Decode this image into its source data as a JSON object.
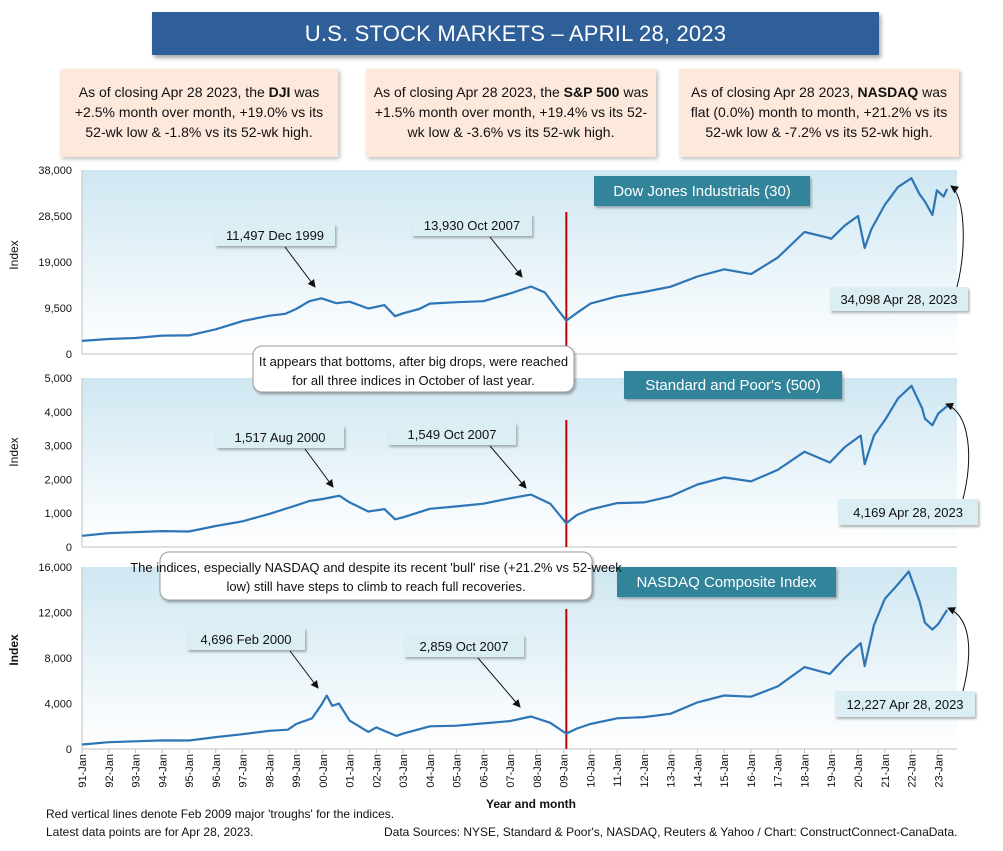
{
  "title": "U.S. STOCK MARKETS – APRIL 28, 2023",
  "summaries": [
    {
      "pre": "As of closing Apr 28 2023, the ",
      "bold": "DJI",
      "post": " was +2.5% month over month, +19.0% vs its 52-wk low & -1.8% vs its 52-wk high."
    },
    {
      "pre": "As of closing Apr 28 2023, the ",
      "bold": "S&P 500",
      "post": " was +1.5% month over month, +19.4% vs its 52-wk low & -3.6% vs its 52-wk high."
    },
    {
      "pre": "As of closing Apr 28 2023, ",
      "bold": "NASDAQ",
      "post": " was flat (0.0%) month to month, +21.2% vs its 52-wk low & -7.2% vs its 52-wk high."
    }
  ],
  "chart_data": [
    {
      "type": "line",
      "title": "Dow Jones Industrials (30)",
      "ylabel": "Index",
      "ylim": [
        0,
        38000
      ],
      "yticks": [
        "0",
        "9,500",
        "19,000",
        "28,500",
        "38,000"
      ],
      "points": [
        [
          1991.0,
          2700
        ],
        [
          1992.0,
          3100
        ],
        [
          1993.0,
          3300
        ],
        [
          1994.0,
          3800
        ],
        [
          1995.0,
          3850
        ],
        [
          1996.0,
          5100
        ],
        [
          1997.0,
          6800
        ],
        [
          1998.0,
          7900
        ],
        [
          1998.6,
          8300
        ],
        [
          1999.0,
          9300
        ],
        [
          1999.5,
          10900
        ],
        [
          1999.95,
          11497
        ],
        [
          2000.5,
          10500
        ],
        [
          2001.0,
          10800
        ],
        [
          2001.7,
          9400
        ],
        [
          2002.3,
          10100
        ],
        [
          2002.7,
          7800
        ],
        [
          2003.0,
          8400
        ],
        [
          2003.6,
          9300
        ],
        [
          2004.0,
          10400
        ],
        [
          2005.0,
          10700
        ],
        [
          2006.0,
          10900
        ],
        [
          2007.0,
          12500
        ],
        [
          2007.78,
          13930
        ],
        [
          2008.3,
          12700
        ],
        [
          2008.8,
          9000
        ],
        [
          2009.1,
          6900
        ],
        [
          2009.5,
          8500
        ],
        [
          2010.0,
          10400
        ],
        [
          2011.0,
          11900
        ],
        [
          2012.0,
          12800
        ],
        [
          2013.0,
          13900
        ],
        [
          2014.0,
          16000
        ],
        [
          2015.0,
          17500
        ],
        [
          2016.0,
          16500
        ],
        [
          2017.0,
          19900
        ],
        [
          2018.0,
          25200
        ],
        [
          2018.9,
          24000
        ],
        [
          2019.0,
          23800
        ],
        [
          2019.5,
          26500
        ],
        [
          2020.0,
          28500
        ],
        [
          2020.25,
          21900
        ],
        [
          2020.5,
          25800
        ],
        [
          2021.0,
          30800
        ],
        [
          2021.5,
          34500
        ],
        [
          2022.0,
          36300
        ],
        [
          2022.3,
          33000
        ],
        [
          2022.5,
          31500
        ],
        [
          2022.78,
          28700
        ],
        [
          2022.95,
          33800
        ],
        [
          2023.2,
          32500
        ],
        [
          2023.33,
          34098
        ]
      ],
      "annotations": [
        {
          "text": "11,497 Dec 1999",
          "x": 1999.95,
          "y": 11497
        },
        {
          "text": "13,930 Oct 2007",
          "x": 2007.78,
          "y": 13930
        },
        {
          "text": "34,098 Apr 28, 2023",
          "x": 2023.33,
          "y": 34098
        }
      ]
    },
    {
      "type": "line",
      "title": "Standard and Poor's (500)",
      "ylabel": "Index",
      "ylim": [
        0,
        5000
      ],
      "yticks": [
        "0",
        "1,000",
        "2,000",
        "3,000",
        "4,000",
        "5,000"
      ],
      "points": [
        [
          1991.0,
          330
        ],
        [
          1992.0,
          410
        ],
        [
          1993.0,
          440
        ],
        [
          1994.0,
          470
        ],
        [
          1995.0,
          460
        ],
        [
          1996.0,
          620
        ],
        [
          1997.0,
          760
        ],
        [
          1998.0,
          980
        ],
        [
          1999.0,
          1230
        ],
        [
          1999.5,
          1360
        ],
        [
          2000.0,
          1420
        ],
        [
          2000.62,
          1517
        ],
        [
          2001.0,
          1320
        ],
        [
          2001.7,
          1050
        ],
        [
          2002.3,
          1120
        ],
        [
          2002.7,
          820
        ],
        [
          2003.0,
          880
        ],
        [
          2004.0,
          1130
        ],
        [
          2005.0,
          1200
        ],
        [
          2006.0,
          1280
        ],
        [
          2007.0,
          1440
        ],
        [
          2007.78,
          1549
        ],
        [
          2008.5,
          1280
        ],
        [
          2009.1,
          700
        ],
        [
          2009.5,
          950
        ],
        [
          2010.0,
          1110
        ],
        [
          2011.0,
          1300
        ],
        [
          2012.0,
          1320
        ],
        [
          2013.0,
          1500
        ],
        [
          2014.0,
          1850
        ],
        [
          2015.0,
          2060
        ],
        [
          2016.0,
          1940
        ],
        [
          2017.0,
          2280
        ],
        [
          2018.0,
          2820
        ],
        [
          2018.95,
          2500
        ],
        [
          2019.5,
          2950
        ],
        [
          2020.1,
          3300
        ],
        [
          2020.25,
          2450
        ],
        [
          2020.6,
          3300
        ],
        [
          2021.0,
          3750
        ],
        [
          2021.5,
          4400
        ],
        [
          2022.0,
          4770
        ],
        [
          2022.4,
          4100
        ],
        [
          2022.5,
          3800
        ],
        [
          2022.78,
          3600
        ],
        [
          2023.0,
          3950
        ],
        [
          2023.33,
          4169
        ]
      ],
      "annotations": [
        {
          "text": "1,517 Aug 2000",
          "x": 2000.62,
          "y": 1517
        },
        {
          "text": "1,549 Oct 2007",
          "x": 2007.78,
          "y": 1549
        },
        {
          "text": "4,169 Apr 28, 2023",
          "x": 2023.33,
          "y": 4169
        }
      ]
    },
    {
      "type": "line",
      "title": "NASDAQ Composite Index",
      "ylabel": "Index",
      "ylim": [
        0,
        16000
      ],
      "yticks": [
        "0",
        "4,000",
        "8,000",
        "12,000",
        "16,000"
      ],
      "xlabel": "Year and month",
      "xticks": [
        "91-Jan",
        "92-Jan",
        "93-Jan",
        "94-Jan",
        "95-Jan",
        "96-Jan",
        "97-Jan",
        "98-Jan",
        "99-Jan",
        "00-Jan",
        "01-Jan",
        "02-Jan",
        "03-Jan",
        "04-Jan",
        "05-Jan",
        "06-Jan",
        "07-Jan",
        "08-Jan",
        "09-Jan",
        "10-Jan",
        "11-Jan",
        "12-Jan",
        "13-Jan",
        "14-Jan",
        "15-Jan",
        "16-Jan",
        "17-Jan",
        "18-Jan",
        "19-Jan",
        "20-Jan",
        "21-Jan",
        "22-Jan",
        "23-Jan"
      ],
      "points": [
        [
          1991.0,
          400
        ],
        [
          1992.0,
          600
        ],
        [
          1993.0,
          680
        ],
        [
          1994.0,
          760
        ],
        [
          1995.0,
          750
        ],
        [
          1996.0,
          1050
        ],
        [
          1997.0,
          1300
        ],
        [
          1998.0,
          1600
        ],
        [
          1998.7,
          1700
        ],
        [
          1999.0,
          2200
        ],
        [
          1999.6,
          2700
        ],
        [
          1999.95,
          3900
        ],
        [
          2000.15,
          4696
        ],
        [
          2000.35,
          3800
        ],
        [
          2000.6,
          4000
        ],
        [
          2001.0,
          2500
        ],
        [
          2001.7,
          1500
        ],
        [
          2002.0,
          1900
        ],
        [
          2002.75,
          1150
        ],
        [
          2003.0,
          1350
        ],
        [
          2004.0,
          2000
        ],
        [
          2005.0,
          2050
        ],
        [
          2006.0,
          2250
        ],
        [
          2007.0,
          2450
        ],
        [
          2007.78,
          2859
        ],
        [
          2008.5,
          2300
        ],
        [
          2009.1,
          1350
        ],
        [
          2009.5,
          1800
        ],
        [
          2010.0,
          2200
        ],
        [
          2011.0,
          2700
        ],
        [
          2012.0,
          2800
        ],
        [
          2013.0,
          3100
        ],
        [
          2014.0,
          4100
        ],
        [
          2015.0,
          4700
        ],
        [
          2016.0,
          4600
        ],
        [
          2017.0,
          5500
        ],
        [
          2018.0,
          7200
        ],
        [
          2018.95,
          6600
        ],
        [
          2019.5,
          8000
        ],
        [
          2020.1,
          9300
        ],
        [
          2020.25,
          7300
        ],
        [
          2020.6,
          10900
        ],
        [
          2021.0,
          13200
        ],
        [
          2021.5,
          14500
        ],
        [
          2021.9,
          15600
        ],
        [
          2022.3,
          13000
        ],
        [
          2022.5,
          11100
        ],
        [
          2022.78,
          10500
        ],
        [
          2023.0,
          11000
        ],
        [
          2023.33,
          12227
        ]
      ],
      "annotations": [
        {
          "text": "4,696 Feb 2000",
          "x": 2000.15,
          "y": 4696
        },
        {
          "text": "2,859 Oct 2007",
          "x": 2007.78,
          "y": 2859
        },
        {
          "text": "12,227 Apr 28, 2023",
          "x": 2023.33,
          "y": 12227
        }
      ]
    }
  ],
  "callouts": [
    "It appears that bottoms, after big drops, were reached for all three indices in October of last year.",
    "The indices, especially NASDAQ and despite its recent 'bull' rise (+21.2% vs 52-week low) still have steps to climb to reach full recoveries."
  ],
  "trough_x": 2009.1,
  "footer": {
    "note1": "Red vertical lines denote Feb 2009 major 'troughs' for the indices.",
    "note2": "Latest data points are for Apr 28, 2023.",
    "sources": "Data Sources:  NYSE, Standard & Poor's, NASDAQ, Reuters & Yahoo / Chart: ConstructConnect-CanaData."
  },
  "colors": {
    "line": "#2e75b6",
    "trough": "#c00000",
    "title_box": "#2f5f98",
    "panel_title_box": "#31849b",
    "label_box": "#dbeef3",
    "summary_box": "#fde9dc"
  }
}
